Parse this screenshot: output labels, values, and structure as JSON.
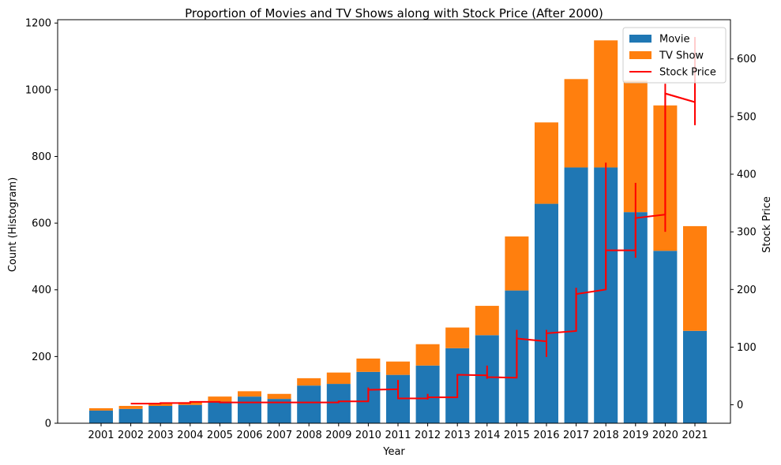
{
  "chart_data": {
    "type": "bar",
    "title": "Proportion of Movies and TV Shows along with Stock Price (After 2000)",
    "xlabel": "Year",
    "ylabel": "Count (Histogram)",
    "y2label": "Stock Price",
    "categories": [
      "2001",
      "2002",
      "2003",
      "2004",
      "2005",
      "2006",
      "2007",
      "2008",
      "2009",
      "2010",
      "2011",
      "2012",
      "2013",
      "2014",
      "2015",
      "2016",
      "2017",
      "2018",
      "2019",
      "2020",
      "2021"
    ],
    "series": [
      {
        "name": "Movie",
        "kind": "bar",
        "stack": "count",
        "color": "#1f77b4",
        "values": [
          38,
          43,
          52,
          55,
          65,
          80,
          73,
          113,
          118,
          154,
          145,
          173,
          225,
          264,
          398,
          658,
          767,
          767,
          633,
          517,
          277
        ]
      },
      {
        "name": "TV Show",
        "kind": "bar",
        "stack": "count",
        "color": "#ff7f0e",
        "values": [
          7,
          9,
          9,
          8,
          15,
          16,
          15,
          22,
          34,
          40,
          40,
          64,
          62,
          88,
          162,
          244,
          265,
          381,
          394,
          436,
          314
        ]
      },
      {
        "name": "Stock Price",
        "kind": "step",
        "axis": "right",
        "color": "#ff0000",
        "segments": [
          {
            "year": "2002",
            "start": 2,
            "end": 2
          },
          {
            "year": "2003",
            "start": 3,
            "end": 3
          },
          {
            "year": "2004",
            "start": 5,
            "end": 5
          },
          {
            "year": "2005",
            "start": 4,
            "end": 4
          },
          {
            "year": "2006",
            "start": 4,
            "end": 4
          },
          {
            "year": "2007",
            "start": 4,
            "end": 4
          },
          {
            "year": "2008",
            "start": 4,
            "end": 4
          },
          {
            "year": "2009",
            "start": 6,
            "end": 6
          },
          {
            "year": "2010",
            "start": 26,
            "end": 27,
            "low": 8,
            "high": 30
          },
          {
            "year": "2011",
            "start": 11,
            "end": 11,
            "low": 10,
            "high": 43
          },
          {
            "year": "2012",
            "start": 13,
            "end": 13,
            "low": 9,
            "high": 19
          },
          {
            "year": "2013",
            "start": 52,
            "end": 51
          },
          {
            "year": "2014",
            "start": 48,
            "end": 47,
            "low": 45,
            "high": 68
          },
          {
            "year": "2015",
            "start": 115,
            "end": 110,
            "low": 48,
            "high": 130
          },
          {
            "year": "2016",
            "start": 124,
            "end": 128,
            "low": 83,
            "high": 130
          },
          {
            "year": "2017",
            "start": 192,
            "end": 200,
            "low": 128,
            "high": 203
          },
          {
            "year": "2018",
            "start": 268,
            "end": 268,
            "low": 200,
            "high": 420
          },
          {
            "year": "2019",
            "start": 324,
            "end": 330,
            "low": 255,
            "high": 385
          },
          {
            "year": "2020",
            "start": 540,
            "end": 525,
            "low": 300,
            "high": 557
          },
          {
            "year": "2021",
            "start": 525,
            "end": 525,
            "low": 485,
            "high": 638
          }
        ]
      }
    ],
    "ylim": [
      0,
      1210
    ],
    "y2lim": [
      -32,
      668
    ],
    "yticks": [
      0,
      200,
      400,
      600,
      800,
      1000,
      1200
    ],
    "y2ticks": [
      0,
      100,
      200,
      300,
      400,
      500,
      600
    ],
    "grid": false,
    "legend": {
      "placement": "top-right",
      "entries": [
        "Movie",
        "TV Show",
        "Stock Price"
      ]
    }
  }
}
